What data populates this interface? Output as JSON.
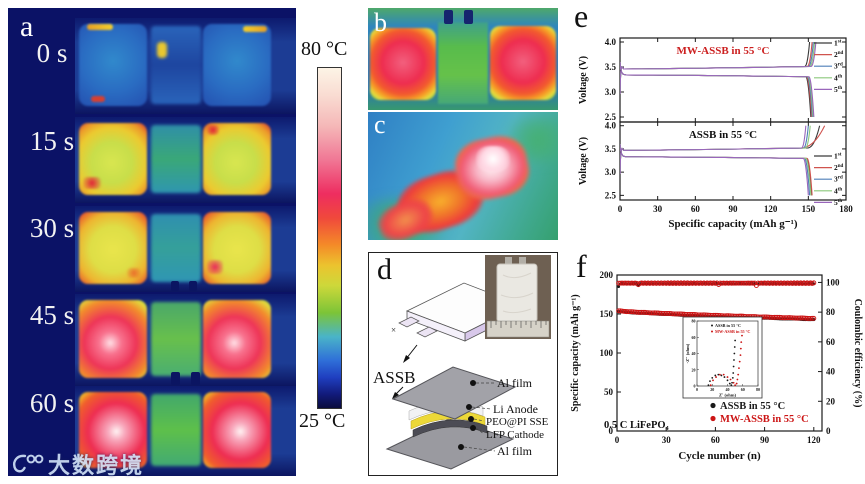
{
  "figure": {
    "panel_letters": {
      "a": "a",
      "b": "b",
      "c": "c",
      "d": "d",
      "e": "e",
      "f": "f"
    },
    "watermark": {
      "text": "大数跨境"
    }
  },
  "panel_a": {
    "times": [
      "0 s",
      "15 s",
      "30 s",
      "45 s",
      "60 s"
    ]
  },
  "colorbar": {
    "top_label": "80 °C",
    "bottom_label": "25 °C"
  },
  "panel_d": {
    "name_label": "ASSB",
    "layer_labels": [
      "Al film",
      "Li Anode",
      "PEO@PI SSE",
      "LFP Cathode",
      "Al film"
    ]
  },
  "chart_data": [
    {
      "id": "e_top",
      "type": "line",
      "title": "MW-ASSB in 55 °C",
      "title_color": "#cc2020",
      "ylabel": "Voltage (V)",
      "ylim": [
        2.4,
        4.08
      ],
      "yticks": [
        "2.5",
        "3.0",
        "3.5",
        "4.0"
      ],
      "xlim": [
        0,
        180
      ],
      "xticks": [
        0,
        30,
        60,
        90,
        120,
        150,
        180
      ],
      "show_xtick_labels": false,
      "charge_plateau": 3.46,
      "discharge_plateau": 3.34,
      "series": [
        {
          "name_base": "1",
          "name_sup": "st",
          "color": "#3a3a3a",
          "charge_end": 151,
          "discharge_end": 152,
          "tail_w": 4
        },
        {
          "name_base": "2",
          "name_sup": "nd",
          "color": "#d0534e",
          "charge_end": 153,
          "discharge_end": 152.6,
          "tail_w": 4
        },
        {
          "name_base": "3",
          "name_sup": "rd",
          "color": "#4e7fb8",
          "charge_end": 154,
          "discharge_end": 153.2,
          "tail_w": 4
        },
        {
          "name_base": "4",
          "name_sup": "th",
          "color": "#8cc87c",
          "charge_end": 155,
          "discharge_end": 153.8,
          "tail_w": 4
        },
        {
          "name_base": "5",
          "name_sup": "th",
          "color": "#9966bb",
          "charge_end": 156,
          "discharge_end": 154.4,
          "tail_w": 4
        }
      ]
    },
    {
      "id": "e_bottom",
      "type": "line",
      "title": "ASSB in 55 °C",
      "title_color": "#111111",
      "ylabel": "Voltage (V)",
      "ylim": [
        2.4,
        4.08
      ],
      "yticks": [
        "2.5",
        "3.0",
        "3.5",
        "4.0"
      ],
      "xlabel": "Specific capacity (mAh g⁻¹)",
      "xlim": [
        0,
        180
      ],
      "xticks": [
        0,
        30,
        60,
        90,
        120,
        150,
        180
      ],
      "show_xtick_labels": true,
      "charge_plateau": 3.47,
      "discharge_plateau": 3.33,
      "series": [
        {
          "name_base": "1",
          "name_sup": "st",
          "color": "#3a3a3a",
          "charge_end": 159,
          "discharge_end": 152.5,
          "tail_w": 10
        },
        {
          "name_base": "2",
          "name_sup": "nd",
          "color": "#d0534e",
          "charge_end": 163,
          "discharge_end": 153,
          "tail_w": 20
        },
        {
          "name_base": "3",
          "name_sup": "rd",
          "color": "#4e7fb8",
          "charge_end": 150,
          "discharge_end": 151,
          "tail_w": 4
        },
        {
          "name_base": "4",
          "name_sup": "th",
          "color": "#8cc87c",
          "charge_end": 151.5,
          "discharge_end": 152,
          "tail_w": 4
        },
        {
          "name_base": "5",
          "name_sup": "th",
          "color": "#9966bb",
          "charge_end": 148,
          "discharge_end": 150,
          "tail_w": 3.5
        }
      ]
    },
    {
      "id": "f",
      "type": "scatter",
      "xlabel": "Cycle number (n)",
      "xlim": [
        0,
        125
      ],
      "xticks": [
        0,
        30,
        60,
        90,
        120
      ],
      "ylabel_left": "Specific capacity (mAh g⁻¹)",
      "ylim_left": [
        0,
        200
      ],
      "yticks_left": [
        0,
        50,
        100,
        150,
        200
      ],
      "ylabel_right": "Coulombic efficiency (%)",
      "ylim_right": [
        0,
        105
      ],
      "yticks_right": [
        0,
        20,
        40,
        60,
        80,
        100
      ],
      "annotation": "0.5 C  LiFePO₄",
      "legend": [
        {
          "label": "ASSB in 55 °C",
          "color": "#1a1a1a"
        },
        {
          "label": "MW-ASSB in 55 °C",
          "color": "#cc1515"
        }
      ],
      "capacity_cycles": [
        1,
        10,
        20,
        30,
        40,
        50,
        60,
        70,
        80,
        90,
        100,
        110,
        120
      ],
      "capacity_assb": [
        153,
        151.5,
        150.5,
        149.5,
        148.5,
        147.6,
        146.8,
        146.0,
        145.3,
        144.6,
        144.0,
        143.4,
        142.8
      ],
      "capacity_mw": [
        154,
        152.6,
        151.6,
        150.7,
        149.8,
        149.0,
        148.2,
        147.5,
        146.8,
        146.1,
        145.5,
        144.9,
        144.3
      ],
      "efficiency_base_assb": 99.2,
      "efficiency_base_mw": 99.5,
      "efficiency_dips_assb": [
        {
          "cycle": 1,
          "value": 97.2
        },
        {
          "cycle": 13,
          "value": 98.2
        }
      ],
      "efficiency_dips_mw": [
        {
          "cycle": 13,
          "value": 98.5
        },
        {
          "cycle": 62,
          "value": 98.6
        },
        {
          "cycle": 85,
          "value": 97.9
        }
      ],
      "inset": {
        "xlabel": "Z′ (ohm)",
        "ylabel": "-Z″ (ohm)",
        "xlim": [
          0,
          80
        ],
        "ylim": [
          0,
          80
        ],
        "xticks": [
          0,
          20,
          40,
          60,
          80
        ],
        "yticks": [
          0,
          20,
          40,
          60,
          80
        ],
        "legend": [
          {
            "label": "ASSB in 55 °C",
            "color": "#1a1a1a"
          },
          {
            "label": "MW-ASSB in 55 °C",
            "color": "#cc1515"
          }
        ],
        "series_assb": [
          [
            15,
            1
          ],
          [
            17,
            6
          ],
          [
            20,
            10
          ],
          [
            24,
            13
          ],
          [
            28,
            14
          ],
          [
            32,
            13
          ],
          [
            36,
            11
          ],
          [
            40,
            7
          ],
          [
            43,
            3
          ],
          [
            45,
            1
          ],
          [
            46,
            4
          ],
          [
            47,
            10
          ],
          [
            47.5,
            16
          ],
          [
            48,
            24
          ],
          [
            48.5,
            32
          ],
          [
            49,
            40
          ],
          [
            49.5,
            48
          ],
          [
            50,
            56
          ]
        ],
        "series_mw": [
          [
            18,
            1
          ],
          [
            21,
            7
          ],
          [
            25,
            11
          ],
          [
            30,
            14
          ],
          [
            35,
            14
          ],
          [
            40,
            11
          ],
          [
            44,
            8
          ],
          [
            48,
            4
          ],
          [
            50,
            1
          ],
          [
            52,
            3
          ],
          [
            53,
            8
          ],
          [
            54,
            14
          ],
          [
            55,
            22
          ],
          [
            56,
            30
          ],
          [
            57,
            38
          ],
          [
            57.5,
            46
          ],
          [
            58,
            54
          ],
          [
            59,
            62
          ]
        ]
      }
    }
  ]
}
